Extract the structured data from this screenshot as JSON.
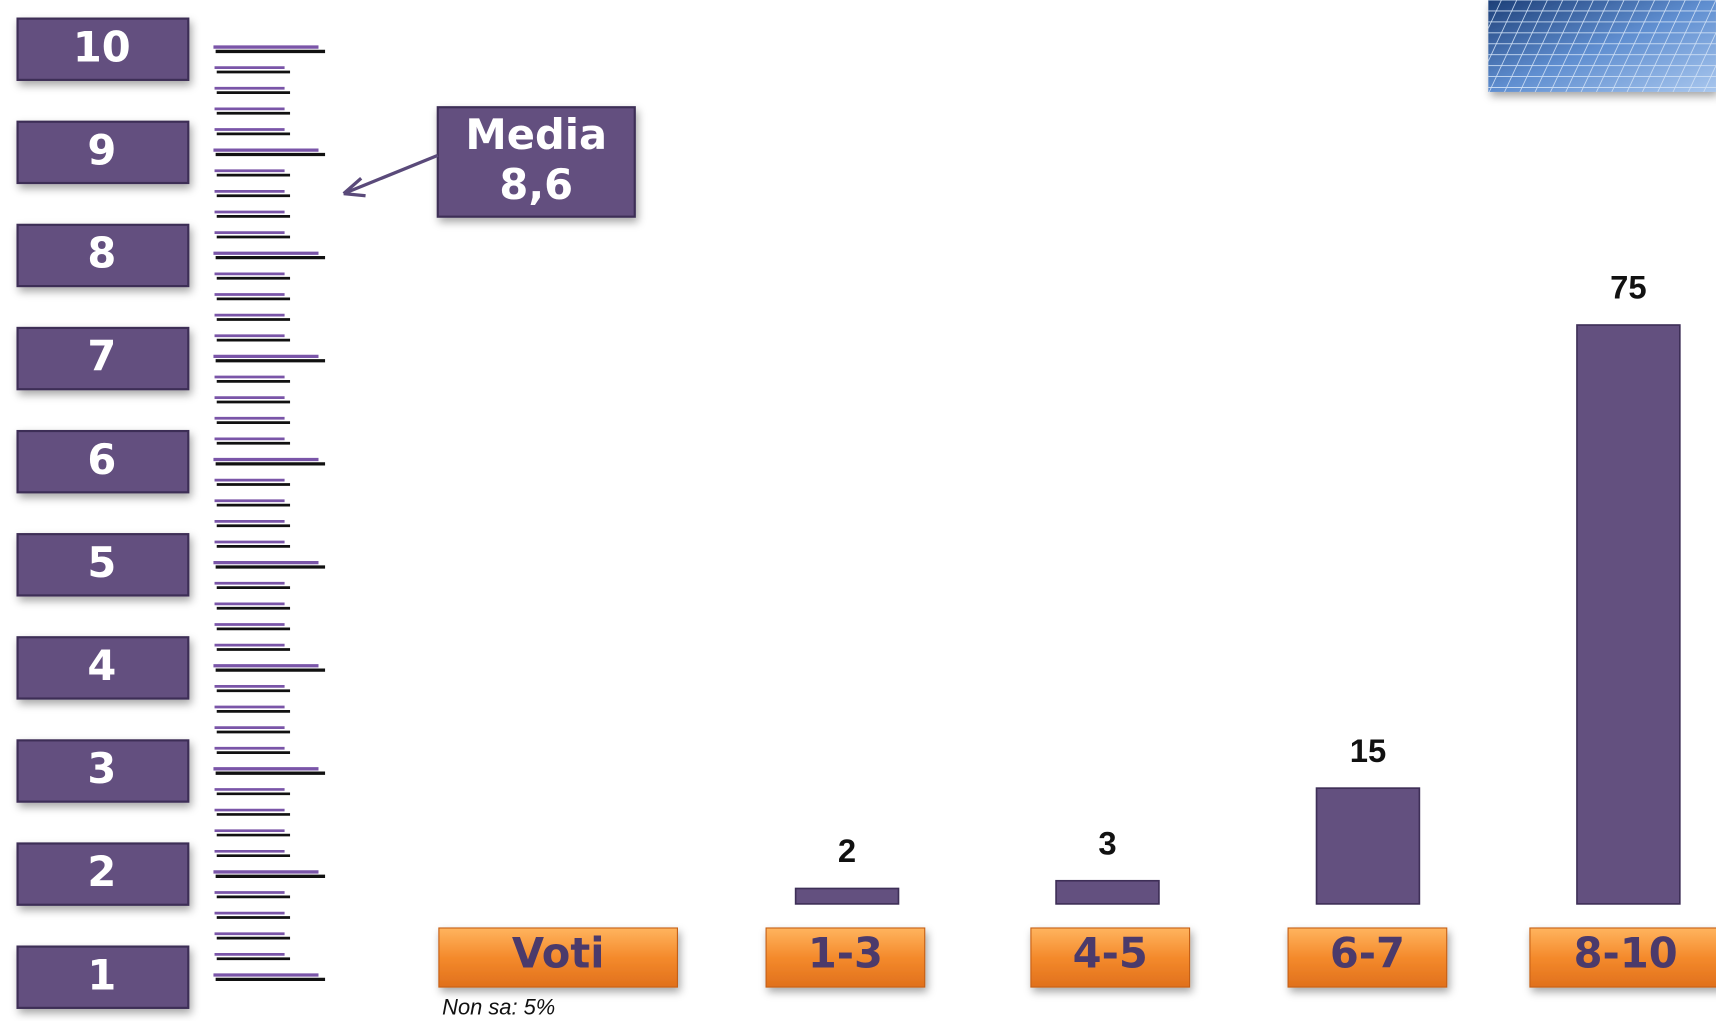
{
  "chart_data": {
    "type": "bar",
    "x_label": "Voti",
    "categories": [
      "1-3",
      "4-5",
      "6-7",
      "8-10"
    ],
    "values": [
      2,
      3,
      15,
      75
    ],
    "color": "#63507f",
    "scale": [
      10,
      9,
      8,
      7,
      6,
      5,
      4,
      3,
      2,
      1
    ],
    "mean_label": "Media",
    "mean": {
      "value": 8.6,
      "label": "8,6"
    },
    "note": "Non sa: 5%"
  }
}
